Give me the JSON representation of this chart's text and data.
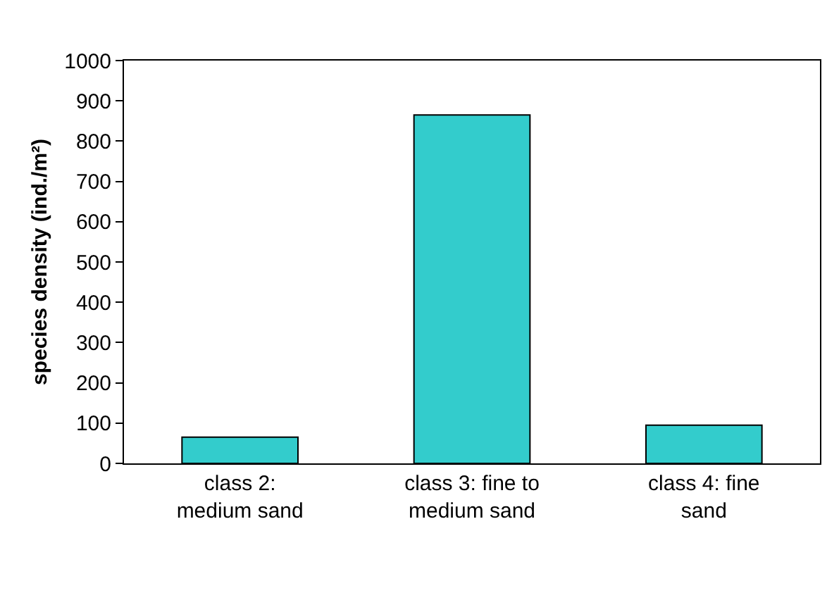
{
  "chart_data": {
    "type": "bar",
    "ylabel": "species density (ind./m²)",
    "categories": [
      "class 2:\nmedium sand",
      "class 3: fine to\nmedium sand",
      "class 4: fine\nsand"
    ],
    "values": [
      65,
      865,
      95
    ],
    "color": "#33cccc",
    "ylim": [
      0,
      1000
    ],
    "yticks": [
      0,
      100,
      200,
      300,
      400,
      500,
      600,
      700,
      800,
      900,
      1000
    ],
    "grid": false
  }
}
